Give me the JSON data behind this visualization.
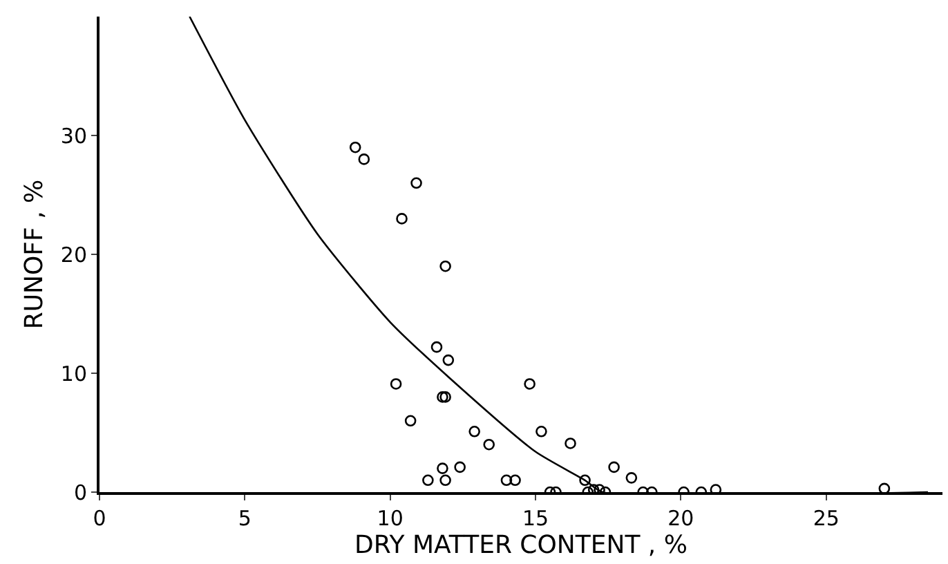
{
  "chart_data": {
    "type": "scatter",
    "xlabel": "DRY MATTER CONTENT , %",
    "ylabel": "RUNOFF , %",
    "xlim": [
      0,
      29
    ],
    "ylim": [
      0,
      40
    ],
    "xticks": [
      0,
      5,
      10,
      15,
      20,
      25
    ],
    "yticks": [
      0,
      10,
      20,
      30
    ],
    "grid": false,
    "marker": "circle",
    "series": [
      {
        "color": "#000000",
        "x": [
          8.8,
          9.1,
          10.9,
          10.4,
          11.9,
          11.6,
          12.0,
          10.2,
          11.8,
          11.9,
          10.7,
          12.9,
          13.4,
          14.8,
          15.2,
          16.2,
          11.3,
          11.8,
          11.9,
          12.4,
          14.0,
          14.3,
          15.5,
          15.7,
          16.7,
          16.8,
          17.0,
          17.2,
          17.4,
          17.7,
          18.3,
          18.7,
          19.0,
          20.1,
          20.7,
          21.2,
          27.0
        ],
        "values": [
          29,
          28,
          26,
          23,
          19,
          12.2,
          11.1,
          9.1,
          8,
          8,
          6,
          5.1,
          4,
          9.1,
          5.1,
          4.1,
          1,
          2,
          1,
          2.1,
          1,
          1,
          0,
          0,
          1,
          0,
          0.2,
          0.2,
          0,
          2.1,
          1.2,
          0,
          0,
          0,
          0,
          0.2,
          0.3
        ]
      },
      {
        "type": "line",
        "color": "#000000",
        "marker": "none",
        "x": [
          3.1,
          5,
          7.5,
          10,
          12,
          15,
          16.7,
          17.3,
          28.5
        ],
        "values": [
          40,
          31.3,
          21.7,
          14.3,
          9.7,
          3.4,
          1,
          0,
          0
        ]
      }
    ]
  }
}
